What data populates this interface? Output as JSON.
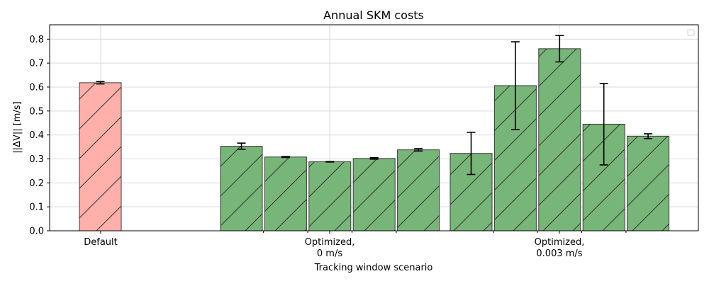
{
  "chart_data": {
    "type": "bar",
    "title": "Annual SKM costs",
    "xlabel": "Tracking window scenario",
    "ylabel": "||ΔV|| [m/s]",
    "ylim": [
      0,
      0.86
    ],
    "yticks": [
      "0.0",
      "0.1",
      "0.2",
      "0.3",
      "0.4",
      "0.5",
      "0.6",
      "0.7",
      "0.8"
    ],
    "ytick_values": [
      0,
      0.1,
      0.2,
      0.3,
      0.4,
      0.5,
      0.6,
      0.7,
      0.8
    ],
    "grid": true,
    "legend": "top-right (empty)",
    "groups": [
      {
        "label_lines": [
          "Default"
        ],
        "color": "#ffb0aa",
        "bars": [
          {
            "value": 0.618,
            "error": 0.005
          }
        ]
      },
      {
        "label_lines": [
          "Optimized,",
          "0 m/s"
        ],
        "color": "#78b578",
        "bars": [
          {
            "value": 0.353,
            "error": 0.013
          },
          {
            "value": 0.308,
            "error": 0.002
          },
          {
            "value": 0.288,
            "error": 0.001
          },
          {
            "value": 0.302,
            "error": 0.003
          },
          {
            "value": 0.338,
            "error": 0.005
          }
        ]
      },
      {
        "label_lines": [
          "Optimized,",
          "0.003 m/s"
        ],
        "color": "#78b578",
        "bars": [
          {
            "value": 0.323,
            "error": 0.088
          },
          {
            "value": 0.606,
            "error": 0.183
          },
          {
            "value": 0.76,
            "error": 0.055
          },
          {
            "value": 0.445,
            "error": 0.17
          },
          {
            "value": 0.395,
            "error": 0.01
          }
        ]
      }
    ]
  }
}
